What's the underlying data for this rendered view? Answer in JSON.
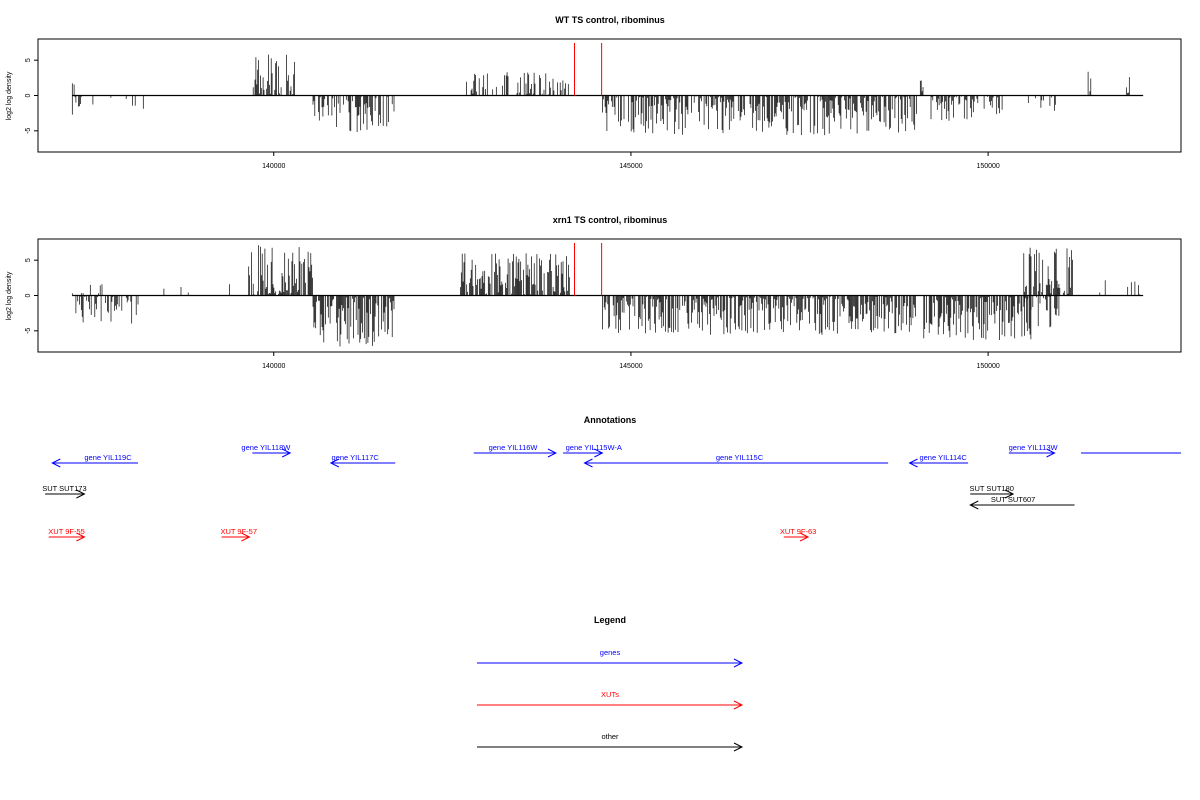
{
  "chart_data": [
    {
      "type": "bar",
      "title": "WT TS control, ribominus",
      "xlabel": "",
      "ylabel": "log2 log density",
      "xlim": [
        136700,
        152700
      ],
      "ylim": [
        -8,
        8
      ],
      "xticks": [
        140000,
        145000,
        150000
      ],
      "xtick_labels": [
        "140000",
        "145000",
        "150000"
      ],
      "yticks": [
        -5,
        0,
        5
      ],
      "ytick_labels": [
        "-5",
        "0",
        "5"
      ],
      "grid": false,
      "markers": [
        {
          "x": 144210,
          "color": "#ff0000"
        },
        {
          "x": 144590,
          "color": "#ff0000"
        }
      ],
      "track": {
        "x_start": 137180,
        "x_end": 152170,
        "description": "per-position log2 density, many thin vertical spikes",
        "segments": [
          {
            "x0": 137180,
            "x1": 137330,
            "dir": 1,
            "amp": 2.0,
            "density": 0.4
          },
          {
            "x0": 137180,
            "x1": 137330,
            "dir": -1,
            "amp": 3.5,
            "density": 0.5
          },
          {
            "x0": 137330,
            "x1": 138300,
            "dir": -1,
            "amp": 2.3,
            "density": 0.12
          },
          {
            "x0": 139700,
            "x1": 140300,
            "dir": 1,
            "amp": 5.8,
            "density": 0.75
          },
          {
            "x0": 140550,
            "x1": 141700,
            "dir": -1,
            "amp": 5.2,
            "density": 0.7
          },
          {
            "x0": 142700,
            "x1": 144150,
            "dir": 1,
            "amp": 3.4,
            "density": 0.45
          },
          {
            "x0": 144600,
            "x1": 149000,
            "dir": -1,
            "amp": 5.7,
            "density": 0.8
          },
          {
            "x0": 149200,
            "x1": 150200,
            "dir": -1,
            "amp": 3.6,
            "density": 0.65
          },
          {
            "x0": 149050,
            "x1": 149100,
            "dir": 1,
            "amp": 2.8,
            "density": 1.0
          },
          {
            "x0": 150550,
            "x1": 150950,
            "dir": -1,
            "amp": 2.4,
            "density": 0.35
          },
          {
            "x0": 151400,
            "x1": 151450,
            "dir": 1,
            "amp": 3.4,
            "density": 1.0
          },
          {
            "x0": 151900,
            "x1": 152000,
            "dir": 1,
            "amp": 3.4,
            "density": 0.6
          }
        ]
      }
    },
    {
      "type": "bar",
      "title": "xrn1 TS control, ribominus",
      "xlabel": "",
      "ylabel": "log2 log density",
      "xlim": [
        136700,
        152700
      ],
      "ylim": [
        -8,
        8
      ],
      "xticks": [
        140000,
        145000,
        150000
      ],
      "xtick_labels": [
        "140000",
        "145000",
        "150000"
      ],
      "yticks": [
        -5,
        0,
        5
      ],
      "ytick_labels": [
        "-5",
        "0",
        "5"
      ],
      "grid": false,
      "markers": [
        {
          "x": 144210,
          "color": "#ff0000"
        },
        {
          "x": 144590,
          "color": "#ff0000"
        }
      ],
      "track": {
        "x_start": 137180,
        "x_end": 152170,
        "description": "per-position log2 density, many thin vertical spikes",
        "segments": [
          {
            "x0": 137180,
            "x1": 138100,
            "dir": -1,
            "amp": 4.0,
            "density": 0.6
          },
          {
            "x0": 137180,
            "x1": 138000,
            "dir": 1,
            "amp": 1.6,
            "density": 0.15
          },
          {
            "x0": 138400,
            "x1": 139500,
            "dir": 1,
            "amp": 2.0,
            "density": 0.08
          },
          {
            "x0": 139650,
            "x1": 140550,
            "dir": 1,
            "amp": 7.2,
            "density": 0.85
          },
          {
            "x0": 140550,
            "x1": 141700,
            "dir": -1,
            "amp": 7.4,
            "density": 0.85
          },
          {
            "x0": 142600,
            "x1": 144150,
            "dir": 1,
            "amp": 6.0,
            "density": 0.85
          },
          {
            "x0": 144600,
            "x1": 149000,
            "dir": -1,
            "amp": 5.6,
            "density": 0.85
          },
          {
            "x0": 149100,
            "x1": 150600,
            "dir": -1,
            "amp": 6.4,
            "density": 0.9
          },
          {
            "x0": 150500,
            "x1": 151200,
            "dir": 1,
            "amp": 6.8,
            "density": 0.85
          },
          {
            "x0": 150500,
            "x1": 151000,
            "dir": -1,
            "amp": 4.8,
            "density": 0.5
          },
          {
            "x0": 151500,
            "x1": 152170,
            "dir": 1,
            "amp": 2.2,
            "density": 0.2
          }
        ]
      }
    },
    {
      "type": "annotation-track",
      "title": "Annotations",
      "xlim": [
        136700,
        152700
      ],
      "features": [
        {
          "label": "gene YIL119C",
          "x0": 138100,
          "x1": 136900,
          "row": 1,
          "color": "#0000ff",
          "label_x": 137680
        },
        {
          "label": "gene YIL118W",
          "x0": 139700,
          "x1": 140230,
          "row": 0,
          "color": "#0000ff",
          "label_x": 139890
        },
        {
          "label": "gene YIL117C",
          "x0": 141700,
          "x1": 140800,
          "row": 1,
          "color": "#0000ff",
          "label_x": 141140
        },
        {
          "label": "gene YIL116W",
          "x0": 142800,
          "x1": 143950,
          "row": 0,
          "color": "#0000ff",
          "label_x": 143350
        },
        {
          "label": "gene YIL115W-A",
          "x0": 144050,
          "x1": 144600,
          "row": 0,
          "color": "#0000ff",
          "label_x": 144480
        },
        {
          "label": "gene YIL115C",
          "x0": 148600,
          "x1": 144350,
          "row": 1,
          "color": "#0000ff",
          "label_x": 146520
        },
        {
          "label": "gene YIL114C",
          "x0": 149720,
          "x1": 148900,
          "row": 1,
          "color": "#0000ff",
          "label_x": 149370
        },
        {
          "label": "gene YIL113W",
          "x0": 150290,
          "x1": 150930,
          "row": 0,
          "color": "#0000ff",
          "label_x": 150630
        },
        {
          "label": "",
          "x0": 151300,
          "x1": 152700,
          "row": 0,
          "color": "#0000ff",
          "label_x": 151300,
          "no_head": true
        },
        {
          "label": "SUT SUT173",
          "x0": 136800,
          "x1": 137350,
          "row": 2,
          "color": "#000000",
          "label_x": 137070
        },
        {
          "label": "SUT SUT180",
          "x0": 149750,
          "x1": 150350,
          "row": 2,
          "color": "#000000",
          "label_x": 150050
        },
        {
          "label": "SUT SUT607",
          "x0": 151210,
          "x1": 149750,
          "row": 3,
          "color": "#000000",
          "label_x": 150350
        },
        {
          "label": "XUT 9F-55",
          "x0": 136850,
          "x1": 137350,
          "row": 4,
          "color": "#ff0000",
          "label_x": 137100
        },
        {
          "label": "XUT 9F-57",
          "x0": 139270,
          "x1": 139660,
          "row": 4,
          "color": "#ff0000",
          "label_x": 139510
        },
        {
          "label": "XUT 9F-63",
          "x0": 147140,
          "x1": 147480,
          "row": 4,
          "color": "#ff0000",
          "label_x": 147340
        }
      ]
    },
    {
      "type": "legend-panel",
      "title": "Legend",
      "entries": [
        {
          "label": "genes",
          "color": "#0000ff"
        },
        {
          "label": "XUTs",
          "color": "#ff0000"
        },
        {
          "label": "other",
          "color": "#000000"
        }
      ]
    }
  ]
}
